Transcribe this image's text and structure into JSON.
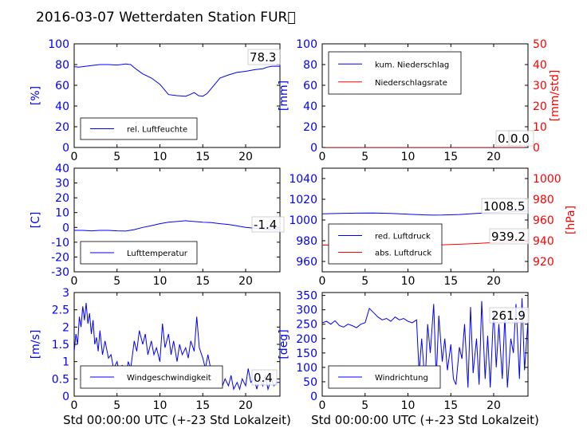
{
  "title": "2016-03-07 Wetterdaten Station FUR\u0000",
  "x_label": "Std 00:00:00 UTC (+-23 Std Lokalzeit)",
  "colors": {
    "primary": "#0000ff",
    "secondary": "#ff0000",
    "axis": "#000000"
  },
  "chart_data": [
    {
      "id": "humidity",
      "type": "line",
      "ylabel": "[%]",
      "xlim": [
        0,
        24
      ],
      "ylim": [
        0,
        100
      ],
      "xticks": [
        0,
        5,
        10,
        15,
        20
      ],
      "yticks": [
        0,
        20,
        40,
        60,
        80,
        100
      ],
      "legend": "lower-left",
      "value_label": "78.3",
      "series": [
        {
          "name": "rel. Luftfeuchte",
          "color": "#0000ff",
          "x": [
            0,
            0.5,
            1,
            2,
            3,
            4,
            5,
            6,
            6.6,
            7,
            7.5,
            8,
            9,
            10,
            10.5,
            11,
            12,
            13,
            13.5,
            14,
            14.5,
            15,
            15.5,
            16,
            16.5,
            17,
            18,
            19,
            20,
            21,
            22,
            22.5,
            23,
            23.5,
            24
          ],
          "y": [
            78,
            77.5,
            78,
            79,
            80,
            80,
            79.5,
            80.5,
            80,
            77,
            74,
            71,
            67,
            61,
            56,
            51,
            50,
            49.5,
            51,
            53,
            50,
            49.5,
            52,
            57,
            62,
            67,
            70,
            72.5,
            73.5,
            75,
            76,
            77.5,
            78.3,
            78.5,
            78.3
          ]
        }
      ]
    },
    {
      "id": "precip",
      "type": "line",
      "ylabel": "[mm]",
      "ylabel_right": "[mm/std]",
      "xlim": [
        0,
        24
      ],
      "ylim": [
        0,
        100
      ],
      "ylim_right": [
        0,
        50
      ],
      "xticks": [
        0,
        5,
        10,
        15,
        20
      ],
      "yticks": [
        0,
        20,
        40,
        60,
        80,
        100
      ],
      "yticks_right": [
        0,
        10,
        20,
        30,
        40,
        50
      ],
      "legend": "top-left",
      "value_label": "0.0",
      "value_label_2": "0.0",
      "series": [
        {
          "name": "kum. Niederschlag",
          "color": "#0000ff",
          "axis": "left",
          "x": [
            0,
            24
          ],
          "y": [
            0,
            0
          ]
        },
        {
          "name": "Niederschlagsrate",
          "color": "#ff0000",
          "axis": "right",
          "x": [
            0,
            24
          ],
          "y": [
            0,
            0
          ]
        }
      ]
    },
    {
      "id": "temperature",
      "type": "line",
      "ylabel": "[C]",
      "xlim": [
        0,
        24
      ],
      "ylim": [
        -30,
        40
      ],
      "xticks": [
        0,
        5,
        10,
        15,
        20
      ],
      "yticks": [
        -30,
        -20,
        -10,
        0,
        10,
        20,
        30,
        40
      ],
      "legend": "lower-left",
      "value_label": "-1.4",
      "series": [
        {
          "name": "Lufttemperatur",
          "color": "#0000ff",
          "x": [
            0,
            1,
            2,
            3,
            4,
            5,
            6,
            7,
            8,
            9,
            10,
            11,
            12,
            13,
            13.5,
            14,
            15,
            16,
            17,
            18,
            19,
            20,
            21,
            22,
            23,
            24
          ],
          "y": [
            -2,
            -2,
            -2.3,
            -2,
            -2,
            -2.3,
            -2.5,
            -1.5,
            0,
            1.2,
            2.5,
            3.5,
            4,
            4.5,
            4.2,
            4,
            3.5,
            3.2,
            2.5,
            2,
            1,
            0,
            -0.5,
            -1.2,
            -1.5,
            -1.4
          ]
        }
      ]
    },
    {
      "id": "pressure",
      "type": "line",
      "ylabel": "[hPa]",
      "xlim": [
        0,
        24
      ],
      "ylim": [
        950,
        1050
      ],
      "ylim_right": [
        910,
        1010
      ],
      "xticks": [
        0,
        5,
        10,
        15,
        20
      ],
      "yticks": [
        960,
        980,
        1000,
        1020,
        1040
      ],
      "yticks_right": [
        920,
        940,
        960,
        980,
        1000
      ],
      "legend": "lower-left",
      "value_label": "1008.5",
      "value_label_2": "939.2",
      "series": [
        {
          "name": "red. Luftdruck",
          "color": "#0000ff",
          "axis": "left",
          "x": [
            0,
            2,
            4,
            6,
            8,
            10,
            12,
            13,
            14,
            16,
            18,
            20,
            22,
            24
          ],
          "y": [
            1006,
            1006.3,
            1006.6,
            1006.7,
            1006.3,
            1005.6,
            1004.9,
            1004.7,
            1004.8,
            1005.3,
            1006.3,
            1007.3,
            1008,
            1008.5
          ]
        },
        {
          "name": "abs. Luftdruck",
          "color": "#ff0000",
          "axis": "right",
          "x": [
            0,
            4,
            8,
            12,
            14,
            16,
            18,
            20,
            22,
            24
          ],
          "y": [
            935.8,
            936.1,
            936.2,
            936.1,
            936.1,
            936.6,
            937.3,
            938.2,
            938.8,
            939.2
          ]
        }
      ]
    },
    {
      "id": "windspeed",
      "type": "line",
      "ylabel": "[m/s]",
      "xlim": [
        0,
        24
      ],
      "ylim": [
        0,
        3
      ],
      "xticks": [
        0,
        5,
        10,
        15,
        20
      ],
      "yticks": [
        0,
        0.5,
        1,
        1.5,
        2,
        2.5,
        3
      ],
      "legend": "lower-left",
      "value_label": "0.4",
      "series": [
        {
          "name": "Windgeschwindigkeit",
          "color": "#0000ff",
          "x": [
            0,
            0.2,
            0.4,
            0.6,
            0.8,
            1,
            1.2,
            1.4,
            1.6,
            1.8,
            2,
            2.2,
            2.4,
            2.6,
            2.8,
            3,
            3.3,
            3.6,
            4,
            4.3,
            4.6,
            5,
            5.3,
            5.6,
            6,
            6.3,
            6.6,
            7,
            7.3,
            7.6,
            8,
            8.3,
            8.6,
            9,
            9.3,
            9.6,
            10,
            10.3,
            10.6,
            11,
            11.3,
            11.6,
            12,
            12.3,
            12.6,
            13,
            13.3,
            13.6,
            14,
            14.3,
            14.6,
            15,
            15.3,
            15.6,
            16,
            16.3,
            16.6,
            17,
            17.3,
            17.6,
            18,
            18.3,
            18.6,
            19,
            19.3,
            19.6,
            20,
            20.3,
            20.6,
            21,
            21.3,
            21.6,
            22,
            22.3,
            22.6,
            23,
            23.3,
            23.6,
            24
          ],
          "y": [
            1.3,
            1.8,
            1.5,
            2.3,
            2.0,
            2.6,
            2.2,
            2.7,
            2.1,
            2.4,
            1.8,
            2.2,
            1.5,
            1.7,
            1.3,
            1.9,
            1.2,
            1.6,
            1.1,
            1.2,
            0.8,
            1.0,
            0.6,
            0.9,
            0.5,
            1.0,
            0.8,
            1.6,
            1.3,
            1.9,
            1.5,
            1.8,
            1.2,
            1.6,
            1.2,
            1.4,
            1.0,
            2.1,
            1.4,
            1.8,
            1.2,
            1.6,
            1.0,
            1.5,
            1.2,
            1.4,
            1.1,
            1.6,
            1.3,
            2.3,
            1.4,
            1.1,
            0.8,
            1.2,
            0.7,
            0.6,
            0.4,
            0.7,
            0.3,
            0.5,
            0.3,
            0.6,
            0.2,
            0.4,
            0.2,
            0.5,
            0.3,
            0.8,
            0.4,
            0.5,
            0.2,
            0.5,
            0.3,
            0.6,
            0.2,
            0.5,
            0.3,
            0.4,
            0.4
          ]
        }
      ]
    },
    {
      "id": "winddir",
      "type": "line",
      "ylabel": "[deg]",
      "xlim": [
        0,
        24
      ],
      "ylim": [
        0,
        360
      ],
      "xticks": [
        0,
        5,
        10,
        15,
        20
      ],
      "yticks": [
        0,
        50,
        100,
        150,
        200,
        250,
        300,
        350
      ],
      "legend": "lower-left",
      "value_label": "261.9",
      "series": [
        {
          "name": "Windrichtung",
          "color": "#0000ff",
          "x": [
            0,
            0.5,
            1,
            1.5,
            2,
            2.5,
            3,
            3.5,
            4,
            4.5,
            5,
            5.5,
            6,
            6.5,
            7,
            7.5,
            8,
            8.5,
            9,
            9.5,
            10,
            10.5,
            11,
            11.3,
            11.6,
            12,
            12.3,
            12.6,
            13,
            13.3,
            13.6,
            14,
            14.3,
            14.6,
            15,
            15.3,
            15.6,
            16,
            16.3,
            16.6,
            17,
            17.3,
            17.6,
            18,
            18.3,
            18.6,
            19,
            19.3,
            19.6,
            20,
            20.3,
            20.6,
            21,
            21.3,
            21.6,
            22,
            22.3,
            22.6,
            23,
            23.3,
            23.6,
            24
          ],
          "y": [
            255,
            260,
            250,
            262,
            245,
            240,
            250,
            245,
            238,
            250,
            255,
            305,
            290,
            275,
            265,
            270,
            260,
            275,
            265,
            270,
            260,
            255,
            265,
            80,
            200,
            40,
            250,
            150,
            320,
            60,
            280,
            120,
            200,
            90,
            180,
            60,
            40,
            170,
            130,
            250,
            30,
            310,
            80,
            200,
            40,
            330,
            60,
            210,
            30,
            300,
            100,
            250,
            60,
            280,
            30,
            200,
            150,
            320,
            60,
            340,
            90,
            261.9
          ]
        }
      ]
    }
  ]
}
